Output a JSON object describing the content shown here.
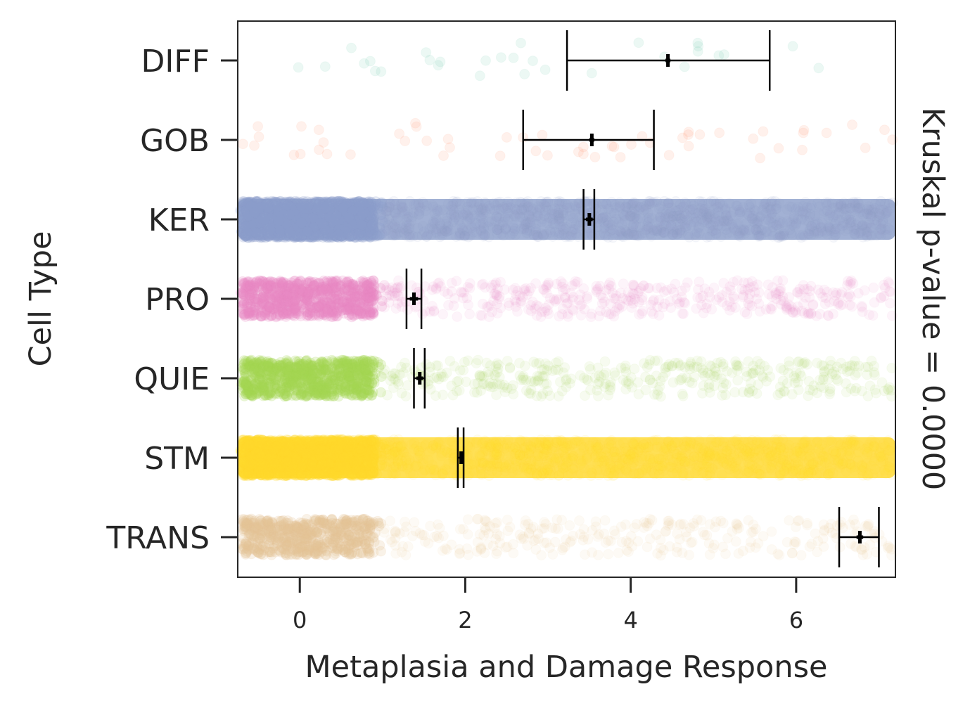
{
  "chart_data": {
    "type": "strip",
    "xlabel": "Metaplasia and Damage Response",
    "ylabel": "Cell Type",
    "right_label": "Kruskal p-value = 0.0000",
    "xlim": [
      -0.75,
      7.2
    ],
    "xticks": [
      0,
      2,
      4,
      6
    ],
    "xtick_labels": [
      "0",
      "2",
      "4",
      "6"
    ],
    "categories": [
      "DIFF",
      "GOB",
      "KER",
      "PRO",
      "QUIE",
      "STM",
      "TRANS"
    ],
    "colors": [
      "#66c2a5",
      "#fc8d62",
      "#8da0cb",
      "#e78ac3",
      "#a6d854",
      "#ffd92f",
      "#e5c494"
    ],
    "density": [
      "sparse",
      "sparse",
      "dense",
      "medium",
      "medium",
      "dense",
      "medium"
    ],
    "point_counts": [
      30,
      55,
      3000,
      1200,
      1200,
      3000,
      900
    ],
    "mean": [
      4.45,
      3.53,
      3.5,
      1.38,
      1.45,
      1.95,
      6.77
    ],
    "mean_ci": [
      [
        4.42,
        4.48
      ],
      [
        3.5,
        3.56
      ],
      [
        3.46,
        3.54
      ],
      [
        1.33,
        1.43
      ],
      [
        1.41,
        1.49
      ],
      [
        1.93,
        1.97
      ],
      [
        6.73,
        6.81
      ]
    ],
    "whisker": [
      [
        3.23,
        5.68
      ],
      [
        2.7,
        4.28
      ],
      [
        3.43,
        3.56
      ],
      [
        1.29,
        1.47
      ],
      [
        1.38,
        1.51
      ],
      [
        1.91,
        1.98
      ],
      [
        6.52,
        7.0
      ]
    ]
  }
}
